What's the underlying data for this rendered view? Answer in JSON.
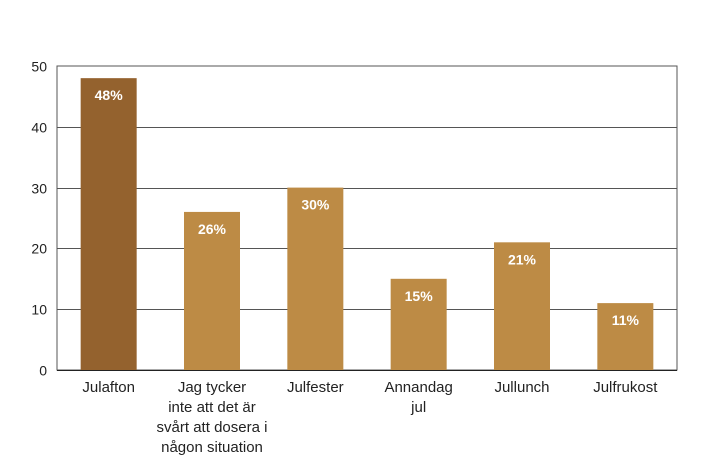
{
  "chart_data": {
    "type": "bar",
    "categories": [
      [
        "Julafton"
      ],
      [
        "Jag tycker",
        "inte att det är",
        "svårt att dosera i",
        "någon situation"
      ],
      [
        "Julfester"
      ],
      [
        "Annandag",
        "jul"
      ],
      [
        "Jullunch"
      ],
      [
        "Julfrukost"
      ]
    ],
    "values": [
      48,
      26,
      30,
      15,
      21,
      11
    ],
    "data_labels": [
      "48%",
      "26%",
      "30%",
      "15%",
      "21%",
      "11%"
    ],
    "highlight_index": 0,
    "ylim": [
      0,
      50
    ],
    "yticks": [
      0,
      10,
      20,
      30,
      40,
      50
    ],
    "grid": true,
    "title": "",
    "xlabel": "",
    "ylabel": "",
    "colors": {
      "highlight": "#94622e",
      "bar": "#bd8b45",
      "grid": "#555555",
      "axis": "#222222"
    }
  }
}
